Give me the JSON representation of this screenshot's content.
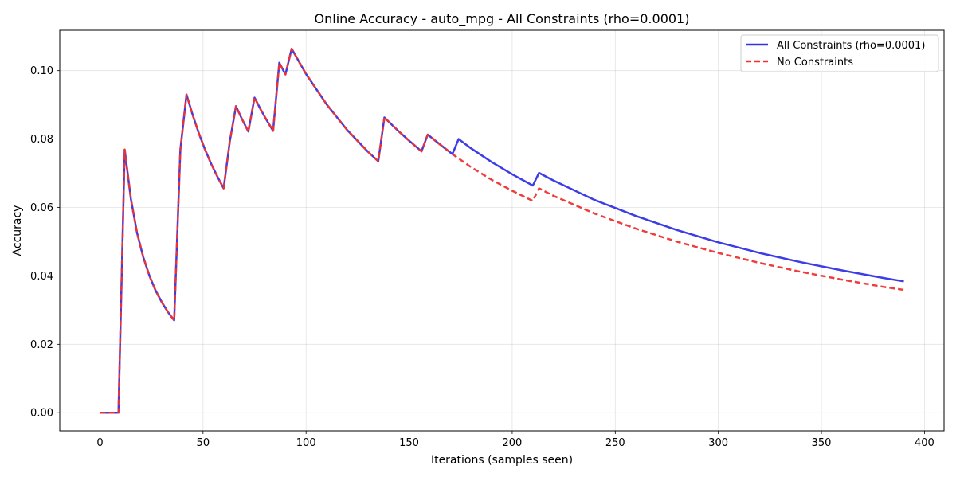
{
  "chart_data": {
    "type": "line",
    "title": "Online Accuracy - auto_mpg - All Constraints (rho=0.0001)",
    "xlabel": "Iterations (samples seen)",
    "ylabel": "Accuracy",
    "xlim": [
      -19.5,
      409.5
    ],
    "ylim": [
      -0.0053,
      0.1118
    ],
    "xticks": [
      0,
      50,
      100,
      150,
      200,
      250,
      300,
      350,
      400
    ],
    "xtick_labels": [
      "0",
      "50",
      "100",
      "150",
      "200",
      "250",
      "300",
      "350",
      "400"
    ],
    "yticks": [
      0.0,
      0.02,
      0.04,
      0.06,
      0.08,
      0.1
    ],
    "ytick_labels": [
      "0.00",
      "0.02",
      "0.04",
      "0.06",
      "0.08",
      "0.10"
    ],
    "grid": true,
    "legend_position": "top-right",
    "series": [
      {
        "name": "All Constraints (rho=0.0001)",
        "color": "#3333e6",
        "linestyle": "solid",
        "points": [
          [
            0,
            0
          ],
          [
            9,
            0
          ],
          [
            12,
            0.0769
          ],
          [
            15,
            0.0625
          ],
          [
            18,
            0.0526
          ],
          [
            21,
            0.0455
          ],
          [
            24,
            0.04
          ],
          [
            27,
            0.0357
          ],
          [
            30,
            0.0323
          ],
          [
            33,
            0.0294
          ],
          [
            36,
            0.027
          ],
          [
            39,
            0.0769
          ],
          [
            42,
            0.093
          ],
          [
            45,
            0.087
          ],
          [
            48,
            0.0816
          ],
          [
            51,
            0.0769
          ],
          [
            54,
            0.0727
          ],
          [
            57,
            0.069
          ],
          [
            60,
            0.0656
          ],
          [
            63,
            0.0794
          ],
          [
            66,
            0.0896
          ],
          [
            69,
            0.0857
          ],
          [
            72,
            0.0822
          ],
          [
            75,
            0.0921
          ],
          [
            78,
            0.0886
          ],
          [
            81,
            0.0854
          ],
          [
            84,
            0.0824
          ],
          [
            87,
            0.1023
          ],
          [
            90,
            0.0989
          ],
          [
            93,
            0.1064
          ],
          [
            100,
            0.099
          ],
          [
            110,
            0.0901
          ],
          [
            120,
            0.0826
          ],
          [
            130,
            0.0763
          ],
          [
            135,
            0.0735
          ],
          [
            138,
            0.0863
          ],
          [
            145,
            0.0822
          ],
          [
            150,
            0.0795
          ],
          [
            156,
            0.0764
          ],
          [
            159,
            0.0813
          ],
          [
            165,
            0.0784
          ],
          [
            171,
            0.0756
          ],
          [
            174,
            0.08
          ],
          [
            180,
            0.0773
          ],
          [
            190,
            0.0733
          ],
          [
            200,
            0.0697
          ],
          [
            210,
            0.0664
          ],
          [
            213,
            0.0701
          ],
          [
            220,
            0.0679
          ],
          [
            240,
            0.0622
          ],
          [
            260,
            0.0575
          ],
          [
            280,
            0.0534
          ],
          [
            300,
            0.0498
          ],
          [
            320,
            0.0467
          ],
          [
            340,
            0.044
          ],
          [
            360,
            0.0416
          ],
          [
            380,
            0.0394
          ],
          [
            390,
            0.0384
          ]
        ]
      },
      {
        "name": "No Constraints",
        "color": "#ee3333",
        "linestyle": "dashed",
        "points": [
          [
            0,
            0
          ],
          [
            9,
            0
          ],
          [
            12,
            0.0769
          ],
          [
            15,
            0.0625
          ],
          [
            18,
            0.0526
          ],
          [
            21,
            0.0455
          ],
          [
            24,
            0.04
          ],
          [
            27,
            0.0357
          ],
          [
            30,
            0.0323
          ],
          [
            33,
            0.0294
          ],
          [
            36,
            0.027
          ],
          [
            39,
            0.0769
          ],
          [
            42,
            0.093
          ],
          [
            45,
            0.087
          ],
          [
            48,
            0.0816
          ],
          [
            51,
            0.0769
          ],
          [
            54,
            0.0727
          ],
          [
            57,
            0.069
          ],
          [
            60,
            0.0656
          ],
          [
            63,
            0.0794
          ],
          [
            66,
            0.0896
          ],
          [
            69,
            0.0857
          ],
          [
            72,
            0.0822
          ],
          [
            75,
            0.0921
          ],
          [
            78,
            0.0886
          ],
          [
            81,
            0.0854
          ],
          [
            84,
            0.0824
          ],
          [
            87,
            0.1023
          ],
          [
            90,
            0.0989
          ],
          [
            93,
            0.1064
          ],
          [
            100,
            0.099
          ],
          [
            110,
            0.0901
          ],
          [
            120,
            0.0826
          ],
          [
            130,
            0.0763
          ],
          [
            135,
            0.0735
          ],
          [
            138,
            0.0863
          ],
          [
            145,
            0.0822
          ],
          [
            150,
            0.0795
          ],
          [
            156,
            0.0764
          ],
          [
            159,
            0.0813
          ],
          [
            165,
            0.0784
          ],
          [
            171,
            0.0756
          ],
          [
            180,
            0.0718
          ],
          [
            190,
            0.0681
          ],
          [
            200,
            0.0649
          ],
          [
            210,
            0.0619
          ],
          [
            213,
            0.0656
          ],
          [
            220,
            0.0634
          ],
          [
            240,
            0.0582
          ],
          [
            260,
            0.0538
          ],
          [
            280,
            0.05
          ],
          [
            300,
            0.0467
          ],
          [
            320,
            0.0438
          ],
          [
            340,
            0.0412
          ],
          [
            360,
            0.0389
          ],
          [
            380,
            0.0368
          ],
          [
            390,
            0.0359
          ]
        ]
      }
    ]
  }
}
